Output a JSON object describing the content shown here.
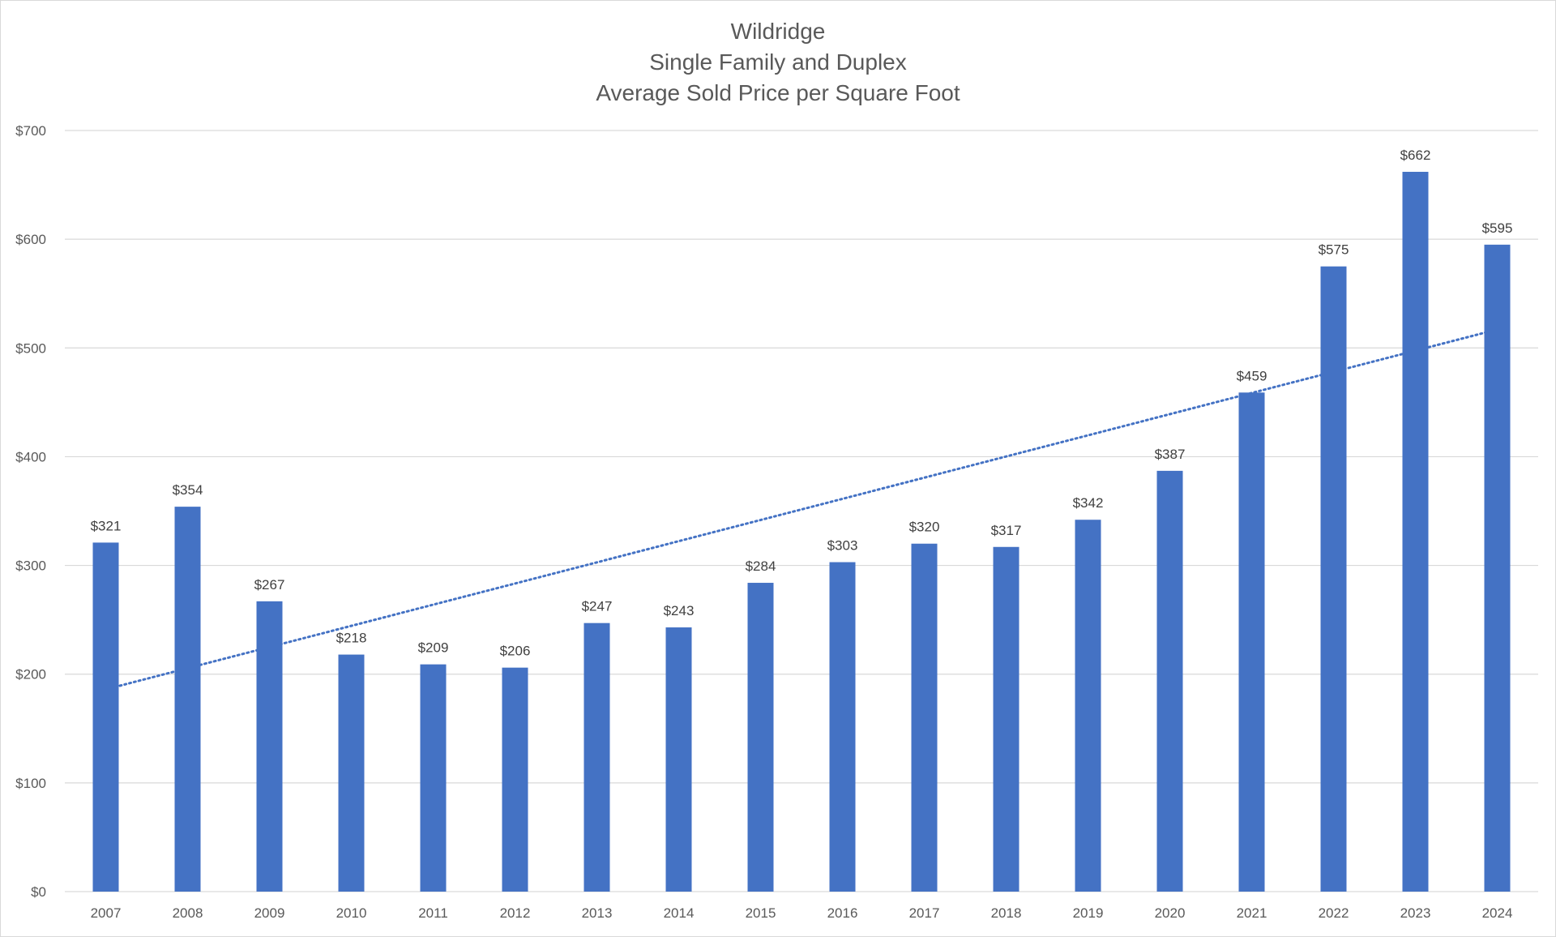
{
  "chart_data": {
    "type": "bar",
    "title_lines": [
      "Wildridge",
      "Single Family and Duplex",
      "Average Sold Price per Square Foot"
    ],
    "categories": [
      "2007",
      "2008",
      "2009",
      "2010",
      "2011",
      "2012",
      "2013",
      "2014",
      "2015",
      "2016",
      "2017",
      "2018",
      "2019",
      "2020",
      "2021",
      "2022",
      "2023",
      "2024"
    ],
    "values": [
      321,
      354,
      267,
      218,
      209,
      206,
      247,
      243,
      284,
      303,
      320,
      317,
      342,
      387,
      459,
      575,
      662,
      595
    ],
    "data_labels": [
      "$321",
      "$354",
      "$267",
      "$218",
      "$209",
      "$206",
      "$247",
      "$243",
      "$284",
      "$303",
      "$320",
      "$317",
      "$342",
      "$387",
      "$459",
      "$575",
      "$662",
      "$595"
    ],
    "y_ticks": [
      "$0",
      "$100",
      "$200",
      "$300",
      "$400",
      "$500",
      "$600",
      "$700"
    ],
    "y_tick_values": [
      0,
      100,
      200,
      300,
      400,
      500,
      600,
      700
    ],
    "ylim": [
      0,
      700
    ],
    "xlabel": "",
    "ylabel": "",
    "grid": true,
    "legend": "none",
    "trendline": {
      "type": "linear",
      "style": "dotted",
      "start_value": 186,
      "end_value": 517
    },
    "colors": {
      "bar": "#4472c4",
      "trendline": "#4472c4",
      "grid": "#d9d9d9",
      "text": "#595959"
    }
  }
}
